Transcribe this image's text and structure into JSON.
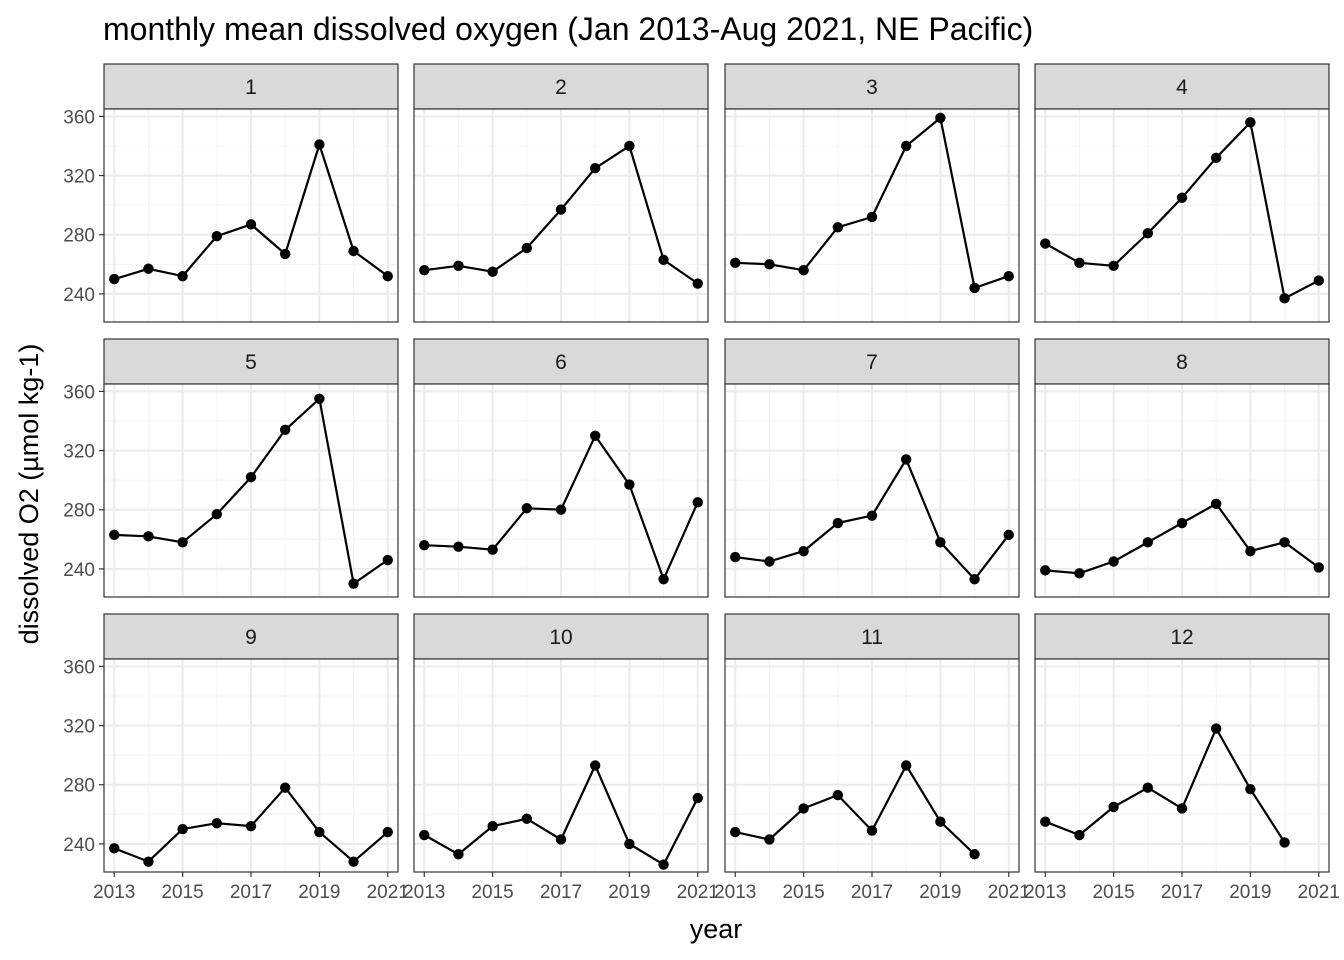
{
  "chart_data": {
    "type": "line",
    "title": "monthly mean dissolved oxygen (Jan 2013-Aug 2021, NE Pacific)",
    "xlabel": "year",
    "ylabel": "dissolved O2 (µmol kg-1)",
    "x_ticks": [
      2013,
      2015,
      2017,
      2019,
      2021
    ],
    "y_ticks": [
      240,
      280,
      320,
      360
    ],
    "xlim": [
      2012.7,
      2021.3
    ],
    "ylim": [
      221,
      365
    ],
    "grid": true,
    "point_color": "#000000",
    "line_color": "#000000",
    "strip_fill": "#d9d9d9",
    "grid_major_color": "#ebebeb",
    "grid_minor_color": "#f4f4f4",
    "panels": [
      {
        "label": "1",
        "x": [
          2013,
          2014,
          2015,
          2016,
          2017,
          2018,
          2019,
          2020,
          2021
        ],
        "values": [
          250,
          257,
          252,
          279,
          287,
          267,
          341,
          269,
          252
        ]
      },
      {
        "label": "2",
        "x": [
          2013,
          2014,
          2015,
          2016,
          2017,
          2018,
          2019,
          2020,
          2021
        ],
        "values": [
          256,
          259,
          255,
          271,
          297,
          325,
          340,
          263,
          247
        ]
      },
      {
        "label": "3",
        "x": [
          2013,
          2014,
          2015,
          2016,
          2017,
          2018,
          2019,
          2020,
          2021
        ],
        "values": [
          261,
          260,
          256,
          285,
          292,
          340,
          359,
          244,
          252
        ]
      },
      {
        "label": "4",
        "x": [
          2013,
          2014,
          2015,
          2016,
          2017,
          2018,
          2019,
          2020,
          2021
        ],
        "values": [
          274,
          261,
          259,
          281,
          305,
          332,
          356,
          237,
          249
        ]
      },
      {
        "label": "5",
        "x": [
          2013,
          2014,
          2015,
          2016,
          2017,
          2018,
          2019,
          2020,
          2021
        ],
        "values": [
          263,
          262,
          258,
          277,
          302,
          334,
          355,
          230,
          246
        ]
      },
      {
        "label": "6",
        "x": [
          2013,
          2014,
          2015,
          2016,
          2017,
          2018,
          2019,
          2020,
          2021
        ],
        "values": [
          256,
          255,
          253,
          281,
          280,
          330,
          297,
          233,
          285
        ]
      },
      {
        "label": "7",
        "x": [
          2013,
          2014,
          2015,
          2016,
          2017,
          2018,
          2019,
          2020,
          2021
        ],
        "values": [
          248,
          245,
          252,
          271,
          276,
          314,
          258,
          233,
          263
        ]
      },
      {
        "label": "8",
        "x": [
          2013,
          2014,
          2015,
          2016,
          2017,
          2018,
          2019,
          2020,
          2021
        ],
        "values": [
          239,
          237,
          245,
          258,
          271,
          284,
          252,
          258,
          241
        ]
      },
      {
        "label": "9",
        "x": [
          2013,
          2014,
          2015,
          2016,
          2017,
          2018,
          2019,
          2020,
          2021
        ],
        "values": [
          237,
          228,
          250,
          254,
          252,
          278,
          248,
          228,
          248
        ]
      },
      {
        "label": "10",
        "x": [
          2013,
          2014,
          2015,
          2016,
          2017,
          2018,
          2019,
          2020,
          2021
        ],
        "values": [
          246,
          233,
          252,
          257,
          243,
          293,
          240,
          226,
          271
        ]
      },
      {
        "label": "11",
        "x": [
          2013,
          2014,
          2015,
          2016,
          2017,
          2018,
          2019,
          2020
        ],
        "values": [
          248,
          243,
          264,
          273,
          249,
          293,
          255,
          233
        ]
      },
      {
        "label": "12",
        "x": [
          2013,
          2014,
          2015,
          2016,
          2017,
          2018,
          2019,
          2020
        ],
        "values": [
          255,
          246,
          265,
          278,
          264,
          318,
          277,
          241
        ]
      }
    ]
  }
}
